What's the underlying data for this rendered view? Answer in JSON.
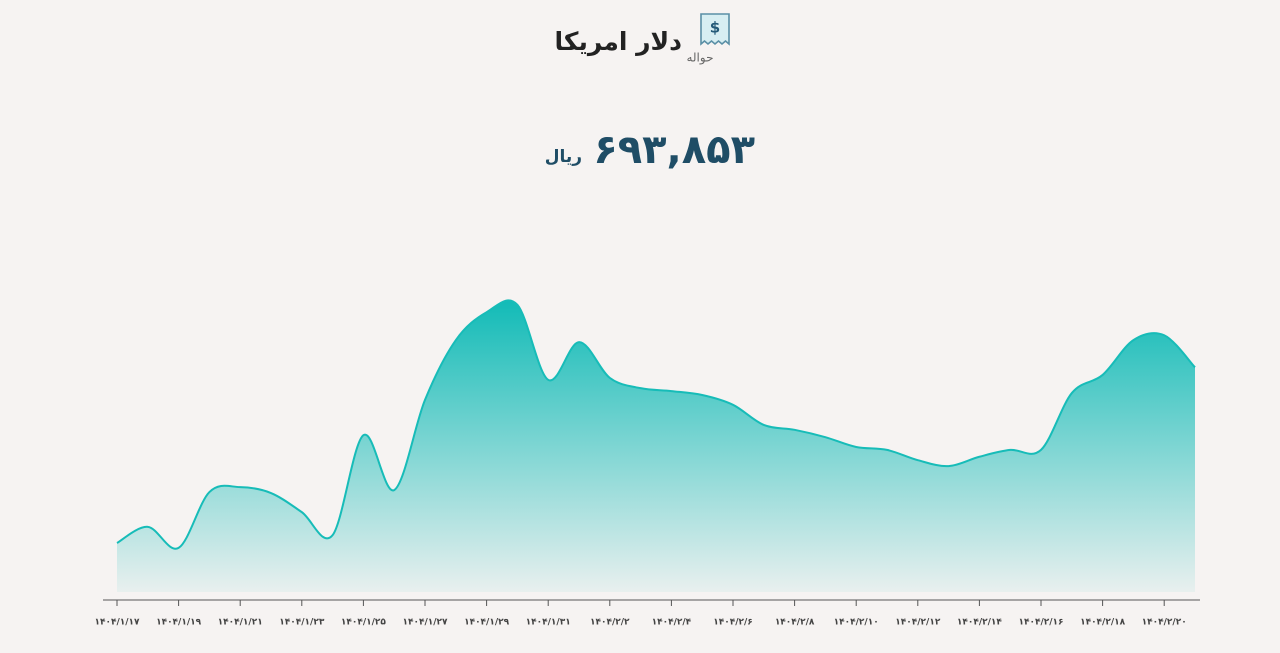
{
  "chart_data": {
    "type": "area",
    "title": "دلار امریکا",
    "subtitle": "حواله",
    "price": "۶۹۳,۸۵۳",
    "unit": "ریال",
    "color": "#17bcb8",
    "categories": [
      "۱۴۰۴/۱/۱۷",
      null,
      "۱۴۰۴/۱/۱۹",
      null,
      "۱۴۰۴/۱/۲۱",
      null,
      "۱۴۰۴/۱/۲۳",
      null,
      "۱۴۰۴/۱/۲۵",
      null,
      "۱۴۰۴/۱/۲۷",
      null,
      "۱۴۰۴/۱/۲۹",
      null,
      "۱۴۰۴/۱/۳۱",
      null,
      "۱۴۰۴/۲/۲",
      null,
      "۱۴۰۴/۲/۴",
      null,
      "۱۴۰۴/۲/۶",
      null,
      "۱۴۰۴/۲/۸",
      null,
      "۱۴۰۴/۲/۱۰",
      null,
      "۱۴۰۴/۲/۱۲",
      null,
      "۱۴۰۴/۲/۱۴",
      null,
      "۱۴۰۴/۲/۱۶",
      null,
      "۱۴۰۴/۲/۱۸",
      null,
      "۱۴۰۴/۲/۲۰",
      null
    ],
    "values": [
      658000,
      661300,
      657000,
      668400,
      669400,
      668200,
      664300,
      659600,
      680000,
      668800,
      687200,
      699400,
      705100,
      706600,
      691300,
      699000,
      691700,
      689600,
      689000,
      688200,
      686200,
      682100,
      681100,
      679600,
      677600,
      677000,
      674900,
      673700,
      675600,
      677000,
      677000,
      688600,
      692300,
      699400,
      700400,
      693853
    ],
    "ylim": [
      648000,
      708000
    ]
  }
}
